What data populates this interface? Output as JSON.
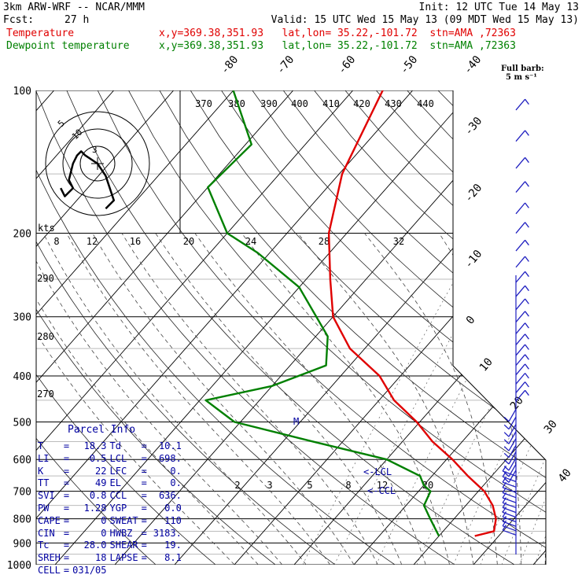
{
  "header": {
    "model": "3km ARW-WRF -- NCAR/MMM",
    "init": "Init: 12 UTC Tue 14 May 13",
    "fcst_label": "Fcst:",
    "fcst_value": "27 h",
    "valid": "Valid: 15 UTC Wed 15 May 13 (09 MDT Wed 15 May 13)"
  },
  "legend": {
    "temp_name": "Temperature",
    "dew_name": "Dewpoint temperature",
    "location": "x,y=369.38,351.93   lat,lon= 35.22,-101.72  stn=AMA ,72363",
    "temp_color": "#e00000",
    "dew_color": "#008000"
  },
  "barb_legend": {
    "line1": "Full barb:",
    "line2": "5 m s⁻¹"
  },
  "hodograph": {
    "units_label": "kts",
    "rings": [
      "5",
      "10"
    ],
    "center_mark": "3"
  },
  "parcel": {
    "title": "Parcel Info",
    "left": [
      {
        "k": "T",
        "v": "18.3"
      },
      {
        "k": "LI",
        "v": "0.5"
      },
      {
        "k": "K",
        "v": "22"
      },
      {
        "k": "TT",
        "v": "49"
      },
      {
        "k": "SVI",
        "v": "0.8"
      },
      {
        "k": "PW",
        "v": "1.28"
      },
      {
        "k": "CAPE",
        "v": "0"
      },
      {
        "k": "CIN",
        "v": "0"
      },
      {
        "k": "Tc",
        "v": "28.0"
      },
      {
        "k": "SREH",
        "v": "18"
      },
      {
        "k": "CELL",
        "v": "031/05"
      }
    ],
    "right": [
      {
        "k": "Td",
        "v": "10.1"
      },
      {
        "k": "LCL",
        "v": "698."
      },
      {
        "k": "LFC",
        "v": "0."
      },
      {
        "k": "EL",
        "v": "0."
      },
      {
        "k": "CCL",
        "v": "636."
      },
      {
        "k": "YGP",
        "v": "0.0"
      },
      {
        "k": "SWEAT",
        "v": "110"
      },
      {
        "k": "HWBZ",
        "v": "3183."
      },
      {
        "k": "SHEAR",
        "v": "19."
      },
      {
        "k": "LAPSE",
        "v": "8.1"
      }
    ]
  },
  "annotations": {
    "lcl": "<-LCL",
    "ccl": "<-CCL",
    "m_mark": "M"
  },
  "chart_data": {
    "type": "line",
    "title": "",
    "ylabel": "",
    "xlabel": "",
    "y_scale": "log-pressure (inverted)",
    "ylim": [
      1000,
      100
    ],
    "pressure_ticks": [
      "100",
      "200",
      "300",
      "400",
      "500",
      "600",
      "700",
      "800",
      "900",
      "1000"
    ],
    "pressure_levels": [
      100,
      200,
      300,
      400,
      500,
      600,
      700,
      800,
      900,
      1000
    ],
    "temperature_isotherm_labels": [
      "-80",
      "-70",
      "-60",
      "-50",
      "-40",
      "-30",
      "-20",
      "-10",
      "0",
      "10",
      "20",
      "30",
      "40"
    ],
    "theta_labels_top": [
      "370",
      "380",
      "390",
      "400",
      "410",
      "420",
      "430",
      "440"
    ],
    "theta_labels_left": [
      "290",
      "280",
      "270"
    ],
    "mixing_ratio_labels_mid": [
      "8",
      "12",
      "16",
      "20",
      "24",
      "28",
      "32"
    ],
    "mixing_ratio_labels_low": [
      "2",
      "3",
      "5",
      "8",
      "12",
      "20"
    ],
    "series": [
      {
        "name": "Temperature",
        "color": "#e00000",
        "x_temp_c": [
          16.0,
          18.5,
          17.0,
          14.5,
          11.0,
          6.0,
          1.0,
          -5.0,
          -10.5,
          -17.5,
          -23.5,
          -32.5,
          -40.0,
          -46.0,
          -53.0,
          -59.5,
          -65.0
        ],
        "y_pressure_hpa": [
          870,
          850,
          800,
          750,
          700,
          650,
          600,
          550,
          500,
          450,
          400,
          350,
          300,
          250,
          200,
          150,
          100
        ]
      },
      {
        "name": "Dewpoint temperature",
        "color": "#008000",
        "x_temp_c": [
          10.0,
          6.0,
          3.0,
          2.0,
          0.0,
          -2.0,
          -10.0,
          -25.0,
          -41.0,
          -49.0,
          -40.0,
          -34.0,
          -38.0,
          -50.0,
          -62.0,
          -70.0,
          -80.0,
          -79.0,
          -90.0
        ],
        "y_pressure_hpa": [
          870,
          800,
          750,
          700,
          680,
          650,
          600,
          550,
          500,
          450,
          420,
          380,
          330,
          260,
          220,
          200,
          160,
          130,
          100
        ]
      }
    ],
    "hodograph_trace_kts": {
      "u": [
        2,
        4,
        3,
        2,
        0,
        -3,
        -4,
        -5,
        -6,
        -7,
        -6,
        -8,
        -9
      ],
      "v": [
        -11,
        -9,
        -6,
        -3,
        0,
        2,
        3,
        2,
        0,
        -4,
        -6,
        -8,
        -6
      ]
    }
  }
}
